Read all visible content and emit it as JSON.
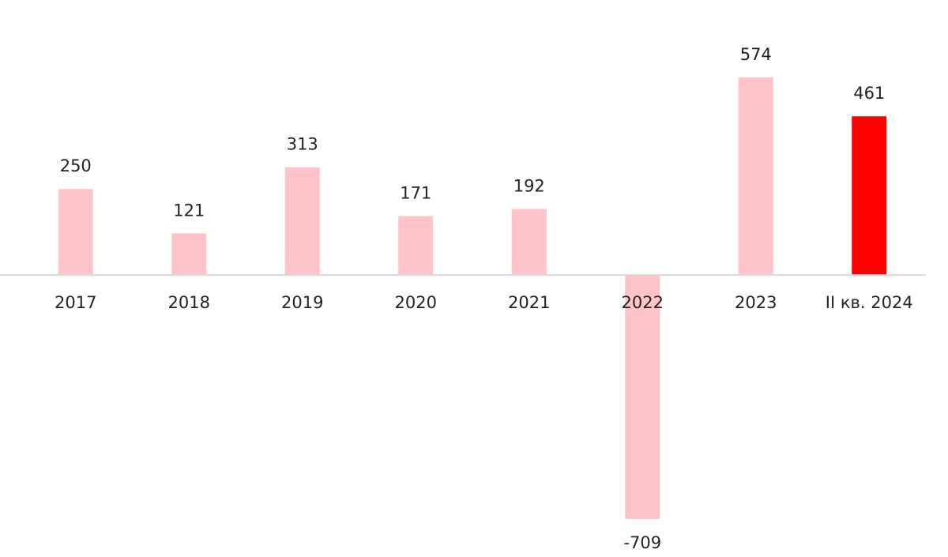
{
  "chart_data": {
    "type": "bar",
    "categories": [
      "2017",
      "2018",
      "2019",
      "2020",
      "2021",
      "2022",
      "2023",
      "II кв. 2024"
    ],
    "values": [
      250,
      121,
      313,
      171,
      192,
      -709,
      574,
      461
    ],
    "colors": [
      "#ffc4ca",
      "#ffc4ca",
      "#ffc4ca",
      "#ffc4ca",
      "#ffc4ca",
      "#ffc4ca",
      "#ffc4ca",
      "#ff0000"
    ]
  }
}
